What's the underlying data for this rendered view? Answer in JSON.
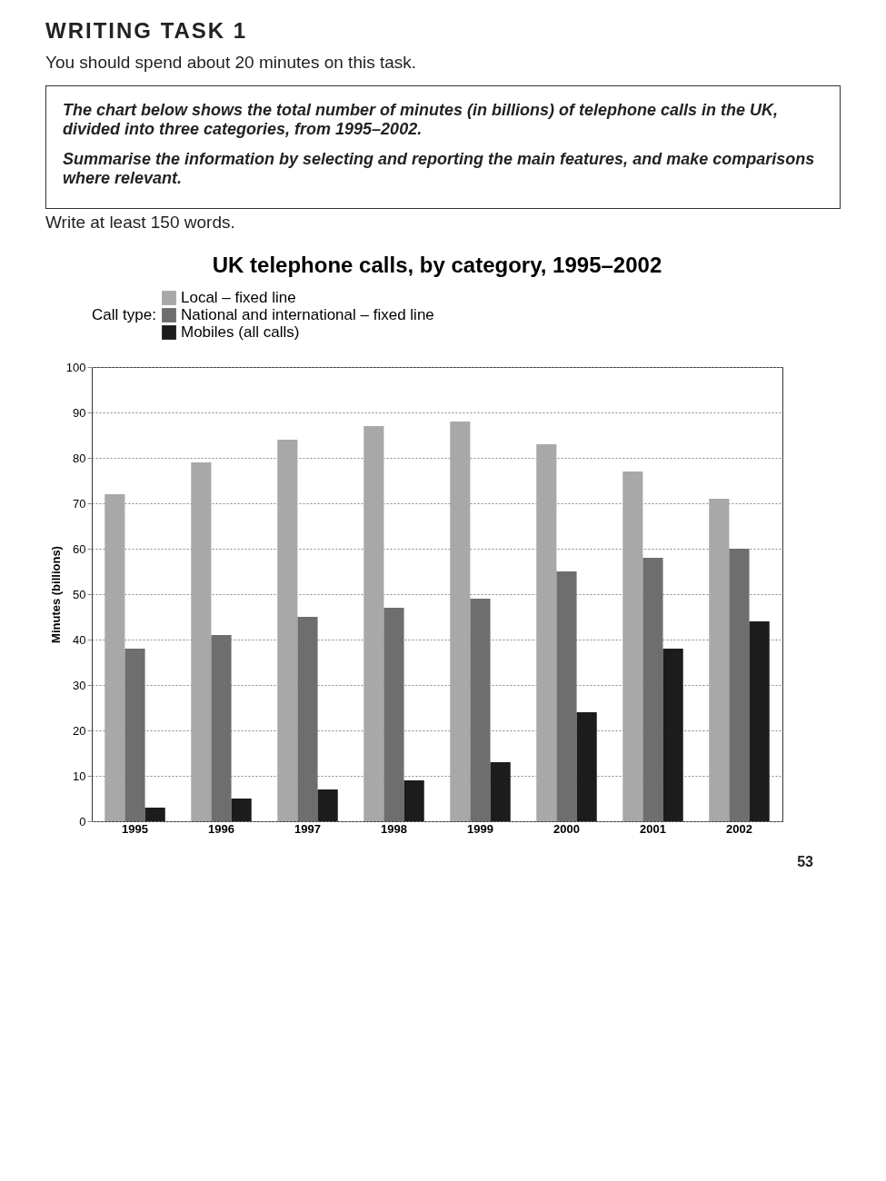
{
  "chart_data": {
    "type": "bar",
    "title": "UK telephone calls, by category, 1995–2002",
    "legend_title": "Call type:",
    "ylabel": "Minutes (billions)",
    "annotations": [
      "WRITING TASK 1",
      "You should spend about 20 minutes on this task.",
      "The chart below shows the total number of minutes (in billions) of telephone calls in the UK, divided into three categories, from 1995–2002.",
      "Summarise the information by selecting and reporting the main features, and make comparisons where relevant.",
      "Write at least 150 words.",
      "53"
    ],
    "categories": [
      "1995",
      "1996",
      "1997",
      "1998",
      "1999",
      "2000",
      "2001",
      "2002"
    ],
    "series": [
      {
        "name": "Local – fixed line",
        "color": "#a8a8a8",
        "values": [
          72,
          79,
          84,
          87,
          88,
          83,
          77,
          71
        ]
      },
      {
        "name": "National and international – fixed line",
        "color": "#6e6e6e",
        "values": [
          38,
          41,
          45,
          47,
          49,
          55,
          58,
          60
        ]
      },
      {
        "name": "Mobiles (all calls)",
        "color": "#1c1c1c",
        "values": [
          3,
          5,
          7,
          9,
          13,
          24,
          38,
          44
        ]
      }
    ],
    "ylim": [
      0,
      100
    ],
    "yticks": [
      0,
      10,
      20,
      30,
      40,
      50,
      60,
      70,
      80,
      90,
      100
    ],
    "grid": "y",
    "legend": "top left"
  }
}
